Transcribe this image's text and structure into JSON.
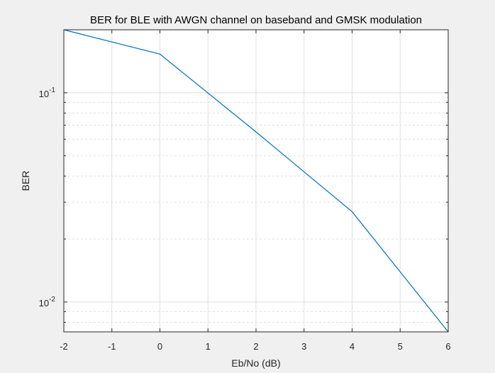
{
  "chart_data": {
    "type": "line",
    "title": "BER for BLE with AWGN channel on baseband and GMSK modulation",
    "xlabel": "Eb/No (dB)",
    "ylabel": "BER",
    "xlim": [
      -2,
      6
    ],
    "ylim": [
      0.0072,
      0.2
    ],
    "yscale": "log",
    "grid": true,
    "xticks": [
      -2,
      -1,
      0,
      1,
      2,
      3,
      4,
      5,
      6
    ],
    "xtick_labels": [
      "-2",
      "-1",
      "0",
      "1",
      "2",
      "3",
      "4",
      "5",
      "6"
    ],
    "yticks": [
      0.01,
      0.1
    ],
    "ytick_labels": [
      {
        "base": "10",
        "exp": "-2"
      },
      {
        "base": "10",
        "exp": "-1"
      }
    ],
    "series": [
      {
        "color": "#0072bd",
        "x": [
          -2,
          0,
          2,
          4,
          6
        ],
        "y": [
          0.2,
          0.153,
          0.065,
          0.027,
          0.0072
        ]
      }
    ]
  },
  "colors": {
    "background": "#f0f0f0",
    "axes_background": "#ffffff",
    "axis": "#262626",
    "grid": "#dfdfdf",
    "line": "#0072bd"
  }
}
